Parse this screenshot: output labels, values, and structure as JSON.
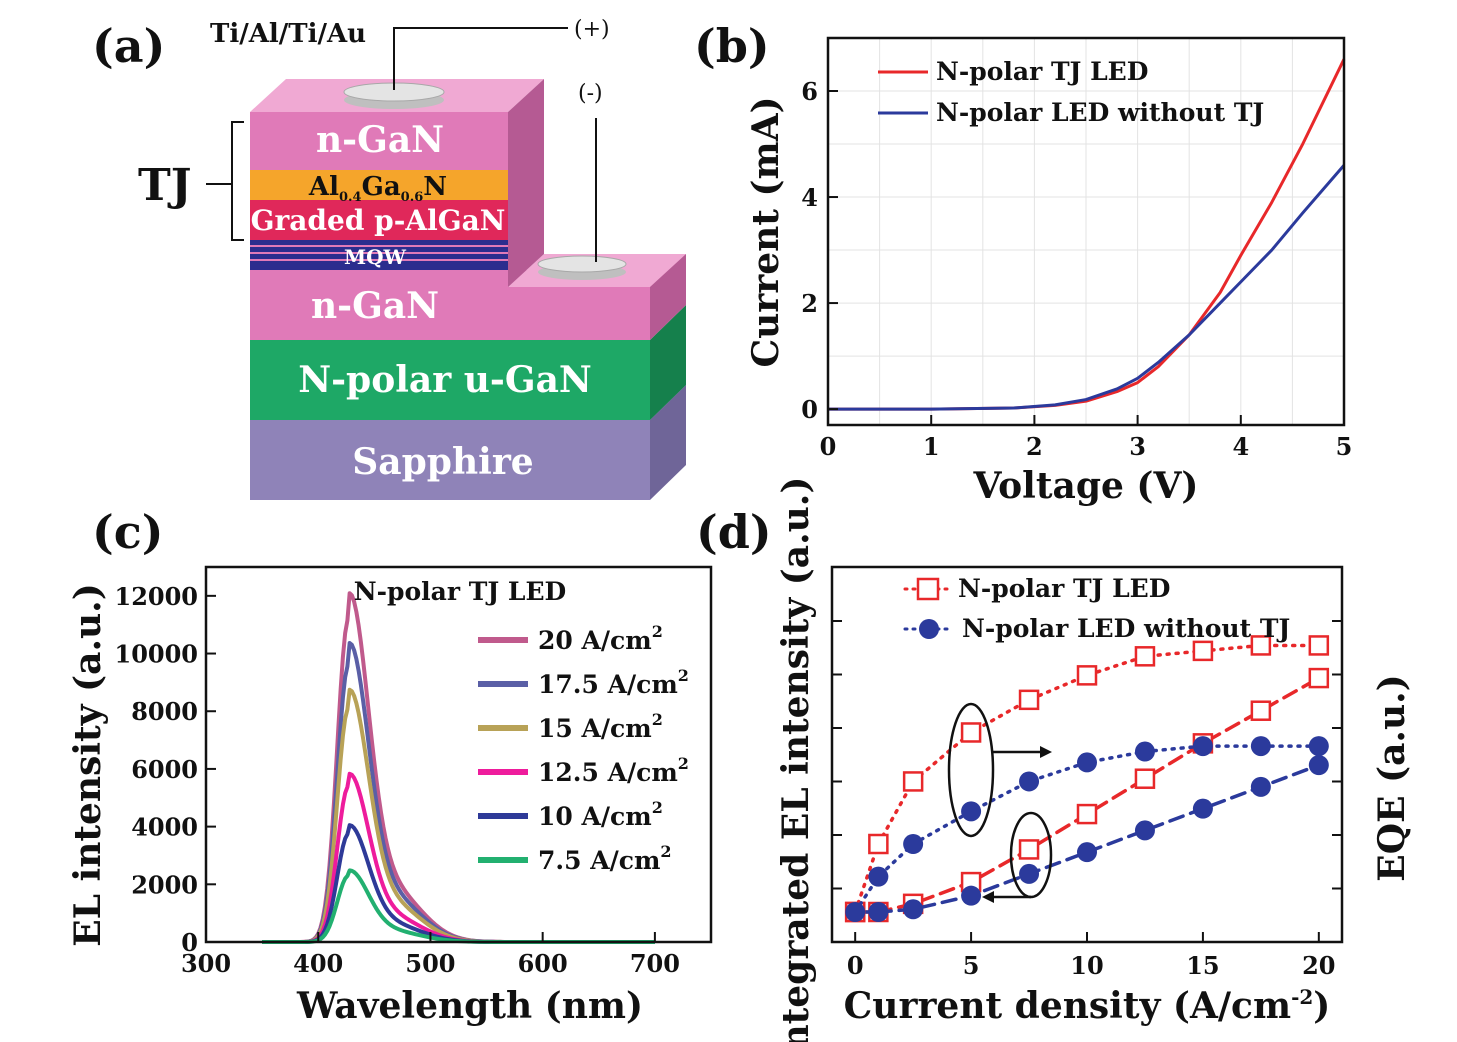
{
  "figure": {
    "panel_a": {
      "label": "(a)",
      "metal_label": "Ti/Al/Ti/Au",
      "plus_label": "(+)",
      "minus_label": "(-)",
      "tj_label": "TJ",
      "layers": {
        "top_ngan": "n-GaN",
        "algan_main": "Al",
        "algan_sub1": "0.4",
        "algan_mid": "Ga",
        "algan_sub2": "0.6",
        "algan_end": "N",
        "graded": "Graded p-AlGaN",
        "mqw": "MQW",
        "bottom_ngan": "n-GaN",
        "ugan": "N-polar u-GaN",
        "sapphire": "Sapphire"
      },
      "colors": {
        "ngan": "#e07ab8",
        "algan": "#f5a52b",
        "graded": "#e0285a",
        "mqw": "#2b2d8e",
        "ugan": "#1ea866",
        "sapphire": "#8f83b8"
      }
    },
    "panel_b": {
      "label": "(b)"
    },
    "panel_c": {
      "label": "(c)"
    },
    "panel_d": {
      "label": "(d)"
    }
  },
  "chart_data": [
    {
      "panel": "b",
      "type": "line",
      "xlabel": "Voltage (V)",
      "ylabel": "Current (mA)",
      "xlim": [
        0,
        5
      ],
      "ylim": [
        -0.3,
        7.0
      ],
      "xticks": [
        "0",
        "1",
        "2",
        "3",
        "4",
        "5"
      ],
      "yticks": [
        "0",
        "2",
        "4",
        "6"
      ],
      "grid": true,
      "legend_position": "top-left",
      "series": [
        {
          "name": "N-polar TJ LED",
          "color": "#e8282a",
          "x": [
            0,
            1,
            1.8,
            2.2,
            2.5,
            2.8,
            3.0,
            3.2,
            3.5,
            3.8,
            4.0,
            4.3,
            4.6,
            5.0
          ],
          "y": [
            0,
            0,
            0.02,
            0.07,
            0.15,
            0.33,
            0.5,
            0.8,
            1.4,
            2.2,
            2.9,
            3.9,
            5.0,
            6.6
          ]
        },
        {
          "name": "N-polar LED without TJ",
          "color": "#2b3a9c",
          "x": [
            0,
            1,
            1.8,
            2.2,
            2.5,
            2.8,
            3.0,
            3.2,
            3.5,
            3.8,
            4.0,
            4.3,
            4.6,
            5.0
          ],
          "y": [
            0,
            0,
            0.02,
            0.08,
            0.18,
            0.38,
            0.58,
            0.88,
            1.4,
            2.0,
            2.4,
            3.0,
            3.7,
            4.6
          ]
        }
      ]
    },
    {
      "panel": "c",
      "type": "line",
      "title": "N-polar TJ LED",
      "xlabel": "Wavelength (nm)",
      "ylabel": "EL intensity (a.u.)",
      "xlim": [
        300,
        750
      ],
      "ylim": [
        0,
        13000
      ],
      "xticks": [
        "300",
        "400",
        "500",
        "600",
        "700"
      ],
      "yticks": [
        "0",
        "2000",
        "4000",
        "6000",
        "8000",
        "10000",
        "12000"
      ],
      "grid": false,
      "legend_position": "right",
      "legend_unit": "A/cm",
      "legend_sup": "2",
      "series": [
        {
          "name": "20",
          "color": "#c05a8c",
          "peak": 11200
        },
        {
          "name": "17.5",
          "color": "#5a5fa6",
          "peak": 9600
        },
        {
          "name": "15",
          "color": "#b8a257",
          "peak": 8100
        },
        {
          "name": "12.5",
          "color": "#ee1c9c",
          "peak": 5400
        },
        {
          "name": "10",
          "color": "#2e3a98",
          "peak": 3750
        },
        {
          "name": "7.5",
          "color": "#22b070",
          "peak": 2300
        }
      ],
      "peak_wavelength": 427,
      "x_range": [
        350,
        700
      ]
    },
    {
      "panel": "d",
      "type": "line",
      "xlabel": "Current density (A/cm",
      "xlabel_sup": "-2",
      "xlabel_end": ")",
      "ylabel": "Integrated EL intensity (a.u.)",
      "ylabel_right": "EQE (a.u.)",
      "xlim": [
        -1,
        21
      ],
      "xticks": [
        "0",
        "5",
        "10",
        "15",
        "20"
      ],
      "legend_position": "top-left",
      "series": [
        {
          "name": "N-polar TJ LED",
          "color": "#e8282a",
          "marker": "square-open",
          "axis": "left",
          "x": [
            0,
            1,
            2.5,
            5,
            7.5,
            10,
            12.5,
            15,
            17.5,
            20
          ],
          "y": [
            0.0,
            0.0,
            0.03,
            0.11,
            0.23,
            0.36,
            0.49,
            0.62,
            0.74,
            0.86
          ]
        },
        {
          "name": "N-polar LED without TJ",
          "color": "#2b3a9c",
          "marker": "circle-filled",
          "axis": "left",
          "x": [
            0,
            1,
            2.5,
            5,
            7.5,
            10,
            12.5,
            15,
            17.5,
            20
          ],
          "y": [
            0.0,
            0.0,
            0.01,
            0.06,
            0.14,
            0.22,
            0.3,
            0.38,
            0.46,
            0.54
          ]
        },
        {
          "name": "N-polar TJ LED",
          "color": "#e8282a",
          "marker": "square-open",
          "axis": "right",
          "x": [
            0,
            1,
            2.5,
            5,
            7.5,
            10,
            12.5,
            15,
            17.5,
            20
          ],
          "y": [
            0.0,
            0.25,
            0.48,
            0.66,
            0.78,
            0.87,
            0.94,
            0.96,
            0.98,
            0.98
          ]
        },
        {
          "name": "N-polar LED without TJ",
          "color": "#2b3a9c",
          "marker": "circle-filled",
          "axis": "right",
          "x": [
            0,
            1,
            2.5,
            5,
            7.5,
            10,
            12.5,
            15,
            17.5,
            20
          ],
          "y": [
            0.0,
            0.13,
            0.25,
            0.37,
            0.48,
            0.55,
            0.59,
            0.61,
            0.61,
            0.61
          ]
        }
      ]
    }
  ]
}
